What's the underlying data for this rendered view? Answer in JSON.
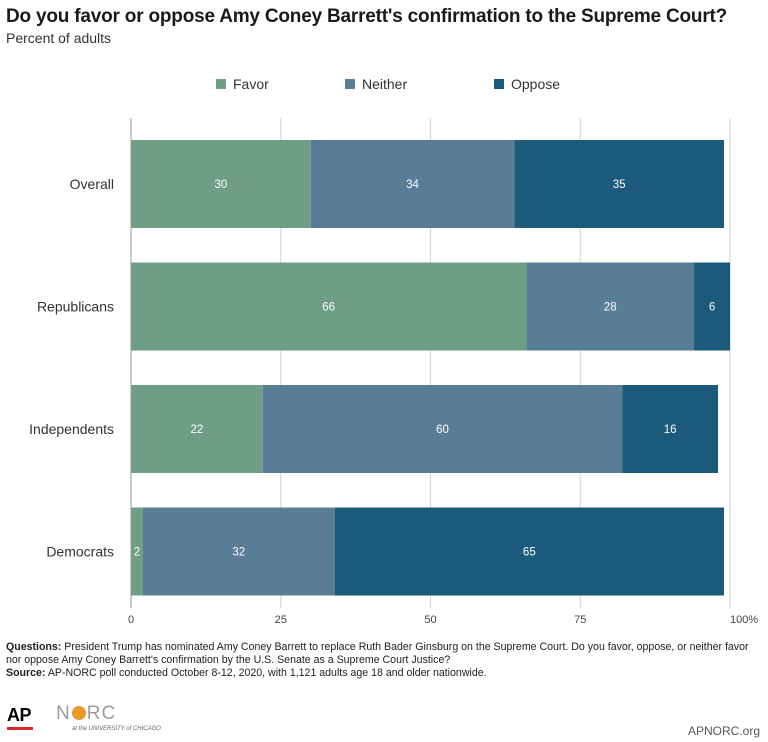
{
  "title": "Do you favor or oppose Amy Coney Barrett's confirmation to the Supreme Court?",
  "subtitle": "Percent of adults",
  "colors": {
    "Favor": "#6e9e85",
    "Neither": "#5a7d96",
    "Oppose": "#1b5a7a",
    "grid": "#d3d3d3"
  },
  "chart_data": {
    "type": "bar",
    "orientation": "horizontal",
    "stacked": true,
    "categories": [
      "Overall",
      "Republicans",
      "Independents",
      "Democrats"
    ],
    "series": [
      {
        "name": "Favor",
        "values": [
          30,
          66,
          22,
          2
        ]
      },
      {
        "name": "Neither",
        "values": [
          34,
          28,
          60,
          32
        ]
      },
      {
        "name": "Oppose",
        "values": [
          35,
          6,
          16,
          65
        ]
      }
    ],
    "xlim": [
      0,
      100
    ],
    "x_ticks": [
      0,
      25,
      50,
      75,
      100
    ],
    "x_tick_labels": [
      "0",
      "25",
      "50",
      "75",
      "100%"
    ],
    "grid": true,
    "legend": "top-center"
  },
  "notes": {
    "questions_label": "Questions:",
    "questions_text": "President Trump has nominated Amy Coney Barrett to replace Ruth Bader Ginsburg on the Supreme Court. Do you favor, oppose, or neither favor nor oppose Amy Coney Barrett's confirmation by the U.S. Senate as a Supreme Court Justice?",
    "source_label": "Source:",
    "source_text": "AP-NORC poll conducted October 8-12, 2020, with 1,121 adults age 18 and older nationwide."
  },
  "footer": {
    "ap_logo": "AP",
    "norc_logo_left": "N",
    "norc_logo_right": "RC",
    "norc_subtitle": "at the UNIVERSITY of CHICAGO",
    "site": "APNORC.org"
  }
}
